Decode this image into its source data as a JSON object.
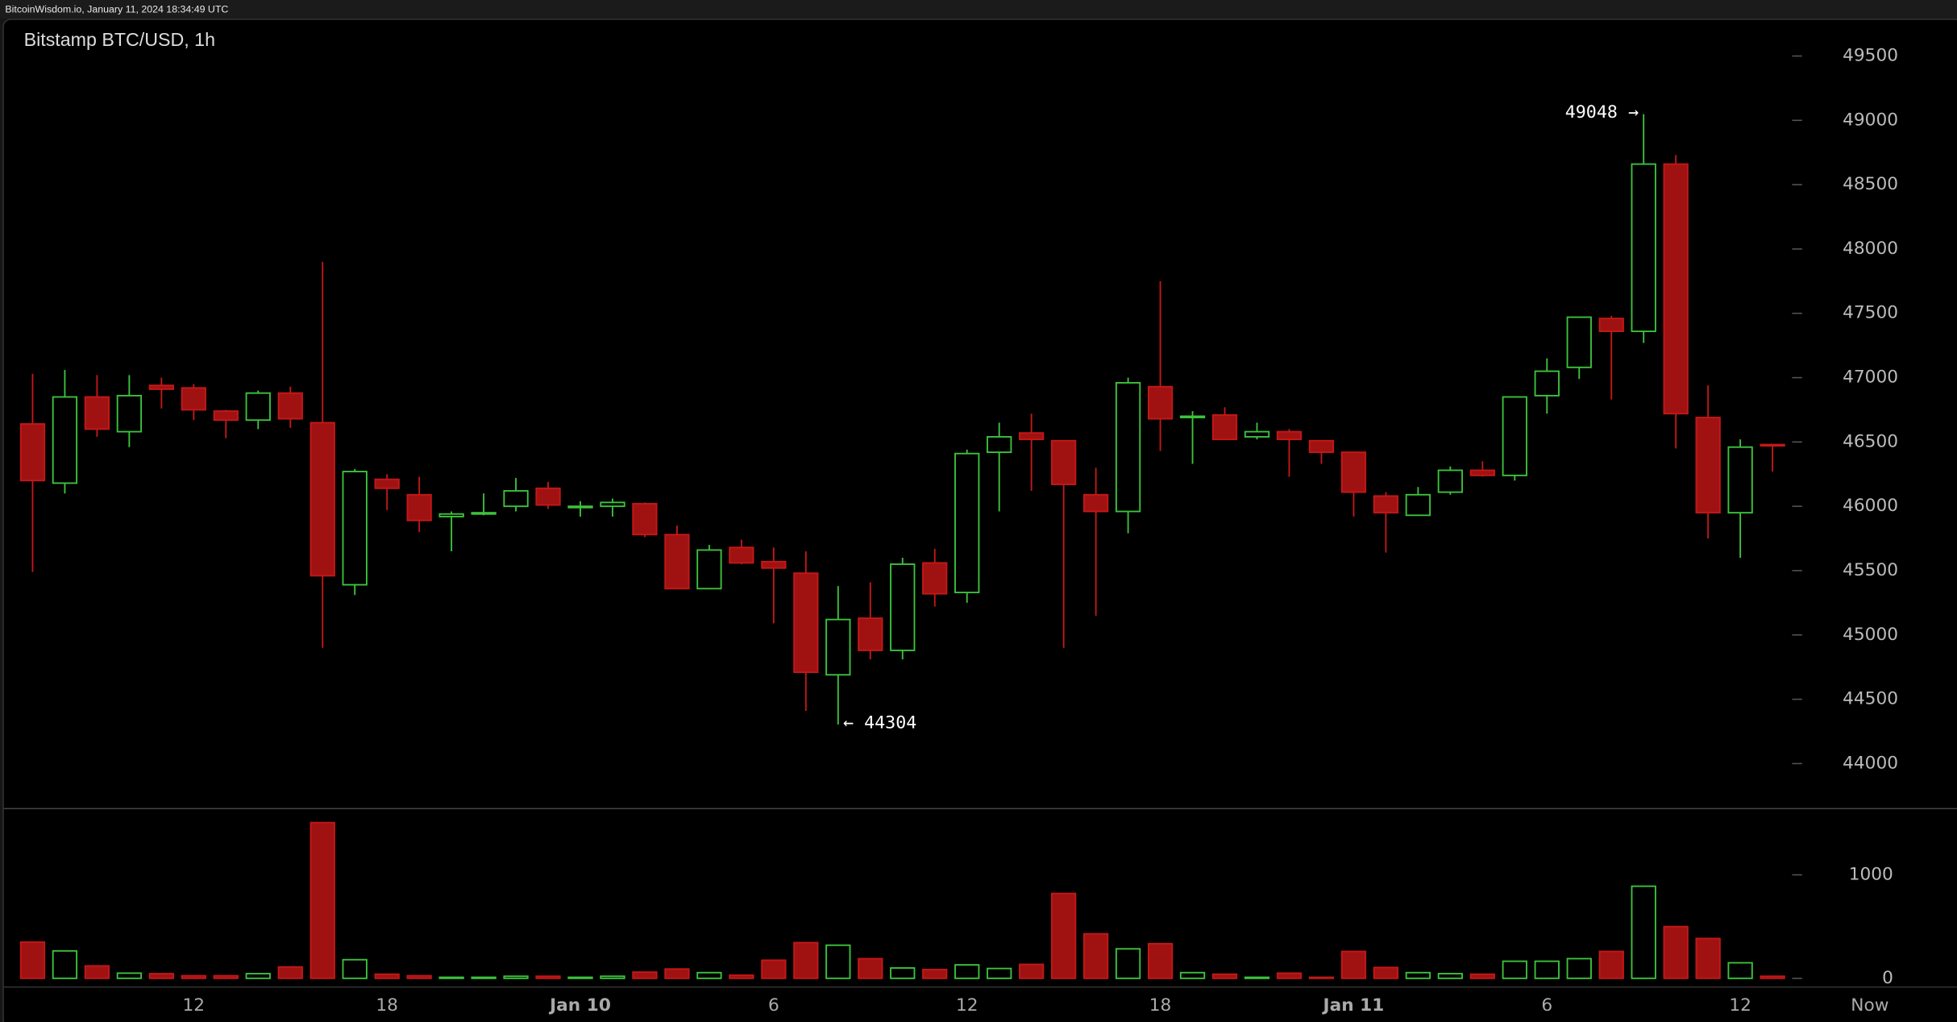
{
  "header": "BitcoinWisdom.io, January 11, 2024 18:34:49 UTC",
  "chart_data": {
    "type": "candlestick",
    "title": "Bitstamp BTC/USD, 1h",
    "up_color": "#3cc43c",
    "down_color": "#a01212",
    "categories": [
      null,
      null,
      null,
      null,
      null,
      "12",
      null,
      null,
      null,
      null,
      null,
      "18",
      null,
      null,
      null,
      null,
      null,
      "Jan 10",
      null,
      null,
      null,
      null,
      null,
      "6",
      null,
      null,
      null,
      null,
      null,
      "12",
      null,
      null,
      null,
      null,
      null,
      "18",
      null,
      null,
      null,
      null,
      null,
      "Jan 11",
      null,
      null,
      null,
      null,
      null,
      "6",
      null,
      null,
      null,
      null,
      null,
      "12",
      null
    ],
    "now_label": "Now",
    "open": [
      46640,
      46180,
      46850,
      46580,
      46940,
      46920,
      46740,
      46670,
      46880,
      46650,
      45390,
      46210,
      46090,
      45920,
      45940,
      46000,
      46140,
      45990,
      46000,
      46020,
      45780,
      45360,
      45680,
      45570,
      45480,
      44690,
      45130,
      44880,
      45560,
      45330,
      46420,
      46570,
      46510,
      46090,
      45960,
      46930,
      46690,
      46710,
      46540,
      46580,
      46510,
      46420,
      46080,
      45930,
      46110,
      46280,
      46240,
      46860,
      47080,
      47460,
      47360,
      48660,
      46690,
      45950,
      46480
    ],
    "high": [
      47030,
      47060,
      47020,
      47020,
      47000,
      46950,
      46750,
      46900,
      46930,
      47900,
      46290,
      46250,
      46230,
      45960,
      46100,
      46220,
      46190,
      46040,
      46060,
      46030,
      45850,
      45700,
      45740,
      45680,
      45650,
      45380,
      45410,
      45600,
      45670,
      46440,
      46650,
      46720,
      46510,
      46300,
      47000,
      47750,
      46740,
      46770,
      46650,
      46600,
      46510,
      46420,
      46110,
      46150,
      46310,
      46350,
      46850,
      47150,
      47470,
      47480,
      49048,
      48730,
      46940,
      46520,
      46480
    ],
    "low": [
      45490,
      46100,
      46540,
      46460,
      46760,
      46670,
      46530,
      46600,
      46610,
      44900,
      45310,
      45970,
      45800,
      45650,
      45930,
      45960,
      45980,
      45920,
      45920,
      45760,
      45360,
      45360,
      45550,
      45090,
      44410,
      44304,
      44810,
      44810,
      45220,
      45250,
      45960,
      46120,
      44900,
      45150,
      45790,
      46430,
      46330,
      46520,
      46520,
      46230,
      46330,
      45920,
      45640,
      45930,
      46090,
      46230,
      46200,
      46720,
      46990,
      46830,
      47270,
      46450,
      45750,
      45600,
      46270
    ],
    "close": [
      46200,
      46850,
      46600,
      46860,
      46910,
      46750,
      46670,
      46880,
      46680,
      45460,
      46270,
      46140,
      45890,
      45940,
      45950,
      46120,
      46010,
      46000,
      46030,
      45780,
      45360,
      45660,
      45560,
      45520,
      44710,
      45120,
      44880,
      45550,
      45320,
      46410,
      46540,
      46520,
      46170,
      45960,
      46960,
      46680,
      46700,
      46520,
      46580,
      46520,
      46420,
      46110,
      45950,
      46090,
      46280,
      46240,
      46850,
      47050,
      47470,
      47360,
      48660,
      46720,
      45950,
      46460,
      46470
    ],
    "volume": [
      350,
      265,
      120,
      50,
      45,
      25,
      25,
      45,
      110,
      1505,
      180,
      40,
      25,
      10,
      10,
      20,
      20,
      10,
      20,
      60,
      90,
      55,
      30,
      175,
      345,
      320,
      190,
      100,
      85,
      130,
      95,
      135,
      820,
      430,
      285,
      335,
      55,
      40,
      10,
      50,
      10,
      260,
      105,
      55,
      45,
      40,
      165,
      165,
      190,
      260,
      890,
      500,
      385,
      150,
      20
    ],
    "ylim": [
      43650,
      49790
    ],
    "yticks": [
      44000,
      44500,
      45000,
      45500,
      46000,
      46500,
      47000,
      47500,
      48000,
      48500,
      49000,
      49500
    ],
    "volume_ylim": [
      0,
      1640
    ],
    "volume_yticks": [
      0,
      1000
    ],
    "annotations": [
      {
        "text": "49048 →"
      },
      {
        "text": "← 44304"
      }
    ]
  }
}
